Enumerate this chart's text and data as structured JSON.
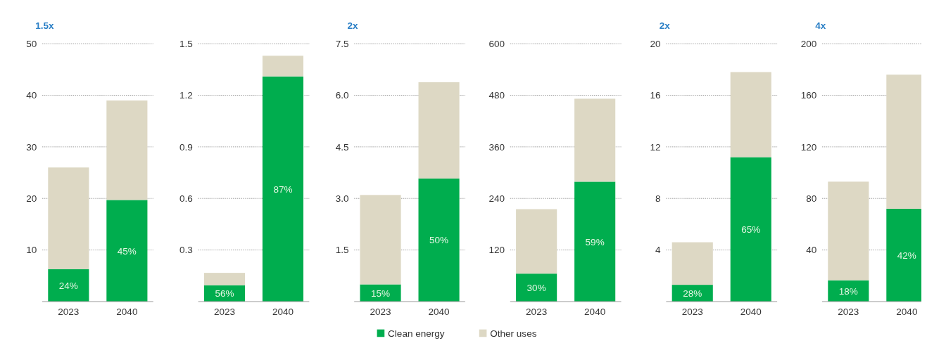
{
  "chart_data": [
    {
      "type": "bar",
      "stacked": true,
      "categories": [
        "2023",
        "2040"
      ],
      "ylim": [
        0,
        50
      ],
      "yticks": [
        10,
        20,
        30,
        40,
        50
      ],
      "grid": "y",
      "legend": "bottom",
      "annotations": [
        "1.5x",
        "24%",
        "45%"
      ],
      "series": [
        {
          "name": "Clean energy",
          "color": "#00ad4e",
          "values": [
            6.3,
            19.7
          ]
        },
        {
          "name": "Other uses",
          "color": "#ddd8c4",
          "values": [
            19.7,
            19.3
          ]
        }
      ]
    },
    {
      "type": "bar",
      "stacked": true,
      "categories": [
        "2023",
        "2040"
      ],
      "ylim": [
        0,
        1.5
      ],
      "yticks": [
        0.3,
        0.6,
        0.9,
        1.2,
        1.5
      ],
      "grid": "y",
      "annotations": [
        "56%",
        "87%"
      ],
      "series": [
        {
          "color": "#00ad4e",
          "values": [
            0.095,
            1.31
          ]
        },
        {
          "color": "#ddd8c4",
          "values": [
            0.072,
            0.12
          ]
        }
      ]
    },
    {
      "type": "bar",
      "stacked": true,
      "categories": [
        "2023",
        "2040"
      ],
      "ylim": [
        0,
        7.5
      ],
      "yticks": [
        1.5,
        {
          "value": 3,
          "label": "3.0"
        },
        4.5,
        {
          "value": 6,
          "label": "6.0"
        },
        7.5
      ],
      "grid": "y",
      "annotations": [
        "2x",
        "15%",
        "50%"
      ],
      "series": [
        {
          "color": "#00ad4e",
          "values": [
            0.5,
            3.58
          ]
        },
        {
          "color": "#ddd8c4",
          "values": [
            2.6,
            2.8
          ]
        }
      ]
    },
    {
      "type": "bar",
      "stacked": true,
      "categories": [
        "2023",
        "2040"
      ],
      "ylim": [
        0,
        600
      ],
      "yticks": [
        120,
        240,
        360,
        480,
        600
      ],
      "grid": "y",
      "annotations": [
        "30%",
        "59%"
      ],
      "series": [
        {
          "color": "#00ad4e",
          "values": [
            65,
            279
          ]
        },
        {
          "color": "#ddd8c4",
          "values": [
            150,
            193
          ]
        }
      ]
    },
    {
      "type": "bar",
      "stacked": true,
      "categories": [
        "2023",
        "2040"
      ],
      "ylim": [
        0,
        20
      ],
      "yticks": [
        4,
        8,
        12,
        16,
        20
      ],
      "grid": "y",
      "annotations": [
        "2x",
        "28%",
        "65%"
      ],
      "series": [
        {
          "color": "#00ad4e",
          "values": [
            1.3,
            11.2
          ]
        },
        {
          "color": "#ddd8c4",
          "values": [
            3.3,
            6.6
          ]
        }
      ]
    },
    {
      "type": "bar",
      "stacked": true,
      "categories": [
        "2023",
        "2040"
      ],
      "ylim": [
        0,
        200
      ],
      "yticks": [
        40,
        80,
        120,
        160,
        200
      ],
      "grid": "y",
      "annotations": [
        "4x",
        "18%",
        "42%"
      ],
      "series": [
        {
          "color": "#00ad4e",
          "values": [
            16.5,
            72
          ]
        },
        {
          "color": "#ddd8c4",
          "values": [
            76.5,
            104
          ]
        }
      ]
    }
  ]
}
